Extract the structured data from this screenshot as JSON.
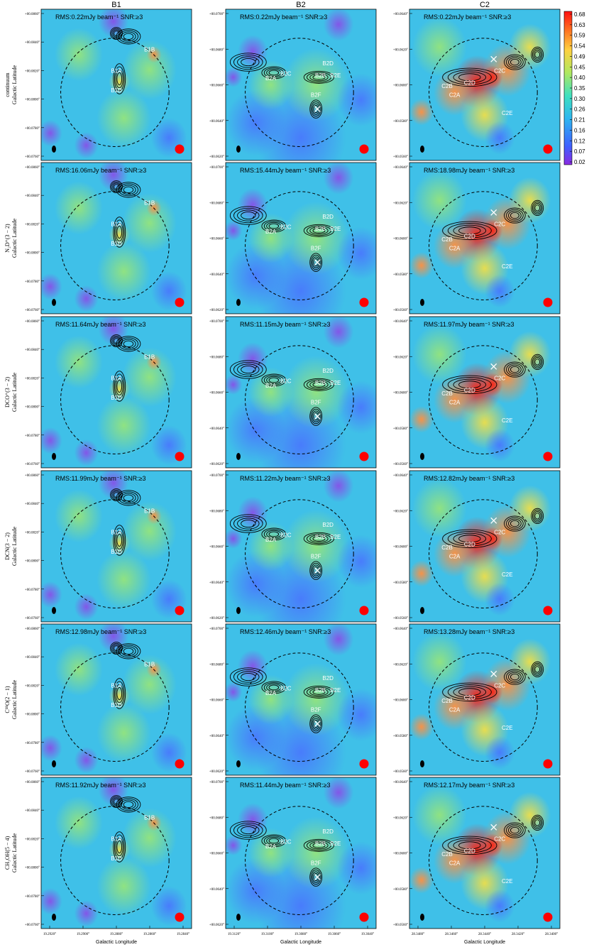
{
  "columns": [
    {
      "title": "B1"
    },
    {
      "title": "B2"
    },
    {
      "title": "C2"
    }
  ],
  "rows": [
    {
      "label_line1": "continuum",
      "label_line2": "Galactic Latitude",
      "rms": [
        "RMS:0.22mJy beam⁻¹ SNR:≥3",
        "RMS:0.22mJy beam⁻¹ SNR:≥3",
        "RMS:0.22mJy beam⁻¹ SNR:≥3"
      ]
    },
    {
      "label_line1": "N₂D⁺(3 − 2)",
      "label_line2": "Galactic Latitude",
      "rms": [
        "RMS:16.06mJy beam⁻¹ SNR:≥3",
        "RMS:15.44mJy beam⁻¹ SNR:≥3",
        "RMS:18.98mJy beam⁻¹ SNR:≥3"
      ]
    },
    {
      "label_line1": "DCO⁺(3 − 2)",
      "label_line2": "Galactic Latitude",
      "rms": [
        "RMS:11.64mJy beam⁻¹ SNR:≥3",
        "RMS:11.15mJy beam⁻¹ SNR:≥3",
        "RMS:11.97mJy beam⁻¹ SNR:≥3"
      ]
    },
    {
      "label_line1": "DCN(3 − 2)",
      "label_line2": "Galactic Latitude",
      "rms": [
        "RMS:11.99mJy beam⁻¹ SNR:≥3",
        "RMS:11.22mJy beam⁻¹ SNR:≥3",
        "RMS:12.82mJy beam⁻¹ SNR:≥3"
      ]
    },
    {
      "label_line1": "C¹⁸O(2 − 1)",
      "label_line2": "Galactic Latitude",
      "rms": [
        "RMS:12.98mJy beam⁻¹ SNR:≥3",
        "RMS:12.46mJy beam⁻¹ SNR:≥3",
        "RMS:13.28mJy beam⁻¹ SNR:≥3"
      ]
    },
    {
      "label_line1": "CH₃OH(5 − 4)",
      "label_line2": "Galactic Latitude",
      "rms": [
        "RMS:11.92mJy beam⁻¹ SNR:≥3",
        "RMS:11.44mJy beam⁻¹ SNR:≥3",
        "RMS:12.17mJy beam⁻¹ SNR:≥3"
      ]
    }
  ],
  "x_axis_label": "Galactic Longitude",
  "x_ticks": [
    [
      "19.2920°",
      "19.2900°",
      "19.2880°",
      "19.2860°",
      "19.2840°"
    ],
    [
      "19.3120°",
      "19.3100°",
      "19.3080°",
      "19.3060°",
      "19.3040°"
    ],
    [
      "28.3480°",
      "28.3460°",
      "28.3440°",
      "28.3420°",
      "28.3400°"
    ]
  ],
  "y_ticks": [
    [
      "+00.0760°",
      "+00.0780°",
      "+00.0800°",
      "+00.0820°",
      "+00.0840°",
      "+00.0860°"
    ],
    [
      "+00.0620°",
      "+00.0640°",
      "+00.0660°",
      "+00.0680°",
      "+00.0700°"
    ],
    [
      "+00.0560°",
      "+00.0580°",
      "+00.0600°",
      "+00.0620°",
      "+00.0640°"
    ]
  ],
  "colorbar_ticks": [
    "0.02",
    "0.07",
    "0.12",
    "0.16",
    "0.21",
    "0.26",
    "0.30",
    "0.35",
    "0.40",
    "0.45",
    "0.49",
    "0.54",
    "0.59",
    "0.63",
    "0.68"
  ],
  "source_labels": [
    [
      "B1A",
      "B1D",
      "B1B"
    ],
    [
      "B2D",
      "B2A",
      "B2C",
      "B2B",
      "B2E",
      "B2F"
    ],
    [
      "C2D",
      "C2A",
      "C2B",
      "C2C",
      "C2E"
    ]
  ],
  "colors": {
    "map_background": "#3fc0e8",
    "beam_marker": "#ff0000",
    "contour": "#000000",
    "cross_marker": "#ffffff"
  },
  "chart_data": {
    "type": "heatmap",
    "layout": "6 rows × 3 columns of image panels with contour overlays",
    "colorbar_range": [
      0.02,
      0.68
    ],
    "colormap": "jet-like (purple-blue-cyan-green-yellow-red)"
  }
}
